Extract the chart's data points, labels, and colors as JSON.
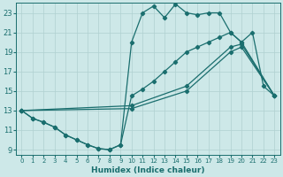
{
  "xlabel": "Humidex (Indice chaleur)",
  "bg_color": "#cde8e8",
  "grid_color": "#b0d0d0",
  "line_color": "#1a6e6e",
  "xlim": [
    -0.5,
    23.5
  ],
  "ylim": [
    8.5,
    24.0
  ],
  "xticks": [
    0,
    1,
    2,
    3,
    4,
    5,
    6,
    7,
    8,
    9,
    10,
    11,
    12,
    13,
    14,
    15,
    16,
    17,
    18,
    19,
    20,
    21,
    22,
    23
  ],
  "yticks": [
    9,
    11,
    13,
    15,
    17,
    19,
    21,
    23
  ],
  "line1_x": [
    0,
    1,
    2,
    3,
    4,
    5,
    6,
    7,
    8,
    9,
    10,
    11,
    12,
    13,
    14,
    15,
    16,
    17,
    18,
    19,
    20,
    21,
    22,
    23
  ],
  "line1_y": [
    13,
    12.2,
    11.8,
    11.3,
    10.5,
    10.0,
    9.5,
    9.1,
    9.0,
    9.5,
    20.0,
    23.0,
    23.7,
    22.5,
    23.9,
    23.0,
    22.8,
    23.0,
    23.0,
    21.0,
    20.0,
    21.0,
    15.5,
    14.5
  ],
  "line2_x": [
    0,
    1,
    2,
    3,
    4,
    5,
    6,
    7,
    8,
    9,
    10,
    11,
    12,
    13,
    14,
    15,
    16,
    17,
    18,
    19,
    20,
    23
  ],
  "line2_y": [
    13,
    12.2,
    11.8,
    11.3,
    10.5,
    10.0,
    9.5,
    9.1,
    9.0,
    9.5,
    14.5,
    15.2,
    16.0,
    17.0,
    18.0,
    19.0,
    19.5,
    20.0,
    20.5,
    21.0,
    20.0,
    14.5
  ],
  "line3_x": [
    0,
    10,
    15,
    19,
    20,
    23
  ],
  "line3_y": [
    13,
    13.5,
    15.5,
    19.5,
    19.8,
    14.5
  ],
  "line4_x": [
    0,
    10,
    15,
    19,
    20,
    23
  ],
  "line4_y": [
    13,
    13.2,
    15.0,
    19.0,
    19.5,
    14.5
  ]
}
